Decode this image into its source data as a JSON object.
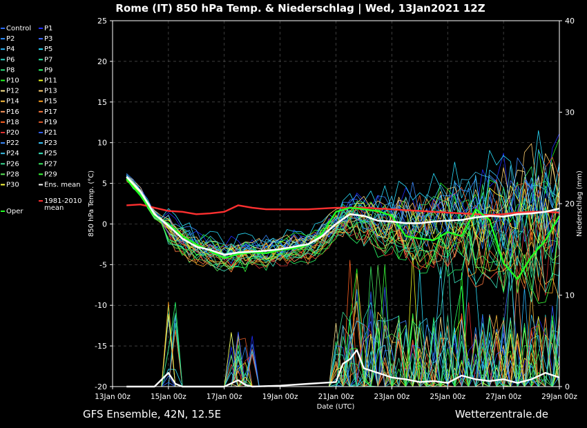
{
  "chart_data": {
    "type": "line",
    "title": "Rome  (IT)  850 hPa Temp. & Niederschlag | Wed, 13Jan2021 12Z",
    "xlabel": "Date (UTC)",
    "ylabel_left": "850 hPa Temp. (°C)",
    "ylabel_right": "Niederschlag (mm)",
    "ylim_left": [
      -20,
      25
    ],
    "ylim_right": [
      0,
      40
    ],
    "yticks_left": [
      "25",
      "20",
      "15",
      "10",
      "5",
      "0",
      "-5",
      "-10",
      "-15",
      "-20"
    ],
    "yticks_right": [
      "40",
      "30",
      "20",
      "10",
      "0"
    ],
    "x_range_days": [
      0,
      16
    ],
    "xticks": [
      "13Jan 00z",
      "15Jan 00z",
      "17Jan 00z",
      "19Jan 00z",
      "21Jan 00z",
      "23Jan 00z",
      "25Jan 00z",
      "27Jan 00z",
      "29Jan 00z"
    ],
    "grid": true,
    "legend_placement": "left",
    "footer_left": "GFS Ensemble, 42N, 12.5E",
    "footer_right": "Wetterzentrale.de",
    "ens_mean_temp": [
      [
        0.5,
        5.8
      ],
      [
        1.0,
        4.0
      ],
      [
        1.5,
        1.2
      ],
      [
        2.0,
        -0.2
      ],
      [
        2.5,
        -1.8
      ],
      [
        3.0,
        -2.8
      ],
      [
        3.5,
        -3.2
      ],
      [
        4.0,
        -3.8
      ],
      [
        4.5,
        -3.5
      ],
      [
        5.0,
        -3.4
      ],
      [
        5.5,
        -3.3
      ],
      [
        6.0,
        -3.1
      ],
      [
        6.5,
        -2.8
      ],
      [
        7.0,
        -2.5
      ],
      [
        7.5,
        -1.5
      ],
      [
        8.0,
        0.0
      ],
      [
        8.5,
        1.2
      ],
      [
        9.0,
        1.0
      ],
      [
        9.5,
        0.4
      ],
      [
        10.0,
        0.3
      ],
      [
        10.5,
        0.1
      ],
      [
        11.0,
        0.1
      ],
      [
        11.5,
        0.3
      ],
      [
        12.0,
        0.4
      ],
      [
        12.5,
        0.5
      ],
      [
        13.0,
        0.8
      ],
      [
        13.5,
        1.0
      ],
      [
        14.0,
        0.9
      ],
      [
        14.5,
        1.2
      ],
      [
        15.0,
        1.3
      ],
      [
        15.5,
        1.5
      ],
      [
        16.0,
        1.9
      ]
    ],
    "climate_mean_temp": [
      [
        0.5,
        2.3
      ],
      [
        1.0,
        2.4
      ],
      [
        1.5,
        2.0
      ],
      [
        2.0,
        1.6
      ],
      [
        2.5,
        1.5
      ],
      [
        3.0,
        1.2
      ],
      [
        3.5,
        1.3
      ],
      [
        4.0,
        1.5
      ],
      [
        4.5,
        2.3
      ],
      [
        5.0,
        2.0
      ],
      [
        5.5,
        1.8
      ],
      [
        6.0,
        1.8
      ],
      [
        6.5,
        1.8
      ],
      [
        7.0,
        1.8
      ],
      [
        7.5,
        1.9
      ],
      [
        8.0,
        2.0
      ],
      [
        8.5,
        2.0
      ],
      [
        9.0,
        2.0
      ],
      [
        9.5,
        1.9
      ],
      [
        10.0,
        1.8
      ],
      [
        10.5,
        1.7
      ],
      [
        11.0,
        1.6
      ],
      [
        11.5,
        1.5
      ],
      [
        12.0,
        1.4
      ],
      [
        12.5,
        1.3
      ],
      [
        13.0,
        1.2
      ],
      [
        13.5,
        1.1
      ],
      [
        14.0,
        1.2
      ],
      [
        14.5,
        1.4
      ],
      [
        15.0,
        1.5
      ],
      [
        15.5,
        1.5
      ],
      [
        16.0,
        1.4
      ]
    ],
    "oper_temp": [
      [
        0.5,
        5.5
      ],
      [
        1.0,
        3.5
      ],
      [
        1.5,
        1.0
      ],
      [
        2.0,
        0.0
      ],
      [
        2.5,
        -1.5
      ],
      [
        3.0,
        -2.5
      ],
      [
        3.5,
        -3.3
      ],
      [
        4.0,
        -4.2
      ],
      [
        4.5,
        -3.7
      ],
      [
        5.0,
        -3.5
      ],
      [
        5.5,
        -3.6
      ],
      [
        6.0,
        -3.2
      ],
      [
        6.5,
        -3.0
      ],
      [
        7.0,
        -2.6
      ],
      [
        7.5,
        -1.2
      ],
      [
        8.0,
        1.5
      ],
      [
        8.5,
        2.0
      ],
      [
        9.0,
        1.8
      ],
      [
        9.5,
        1.6
      ],
      [
        10.0,
        1.0
      ],
      [
        10.5,
        -1.5
      ],
      [
        11.0,
        -1.8
      ],
      [
        11.5,
        -2.0
      ],
      [
        12.0,
        -1.0
      ],
      [
        12.5,
        -1.5
      ],
      [
        13.0,
        1.8
      ],
      [
        13.5,
        0.5
      ],
      [
        14.0,
        -4.8
      ],
      [
        14.5,
        -6.8
      ],
      [
        15.0,
        -4.0
      ],
      [
        15.5,
        -2.0
      ],
      [
        16.0,
        1.0
      ]
    ],
    "ens_mean_precip": [
      [
        0.5,
        0
      ],
      [
        1.0,
        0
      ],
      [
        1.5,
        0
      ],
      [
        2.0,
        1.5
      ],
      [
        2.25,
        0.3
      ],
      [
        2.5,
        0
      ],
      [
        3.0,
        0
      ],
      [
        4.0,
        0
      ],
      [
        4.5,
        0.7
      ],
      [
        4.75,
        0.2
      ],
      [
        5.0,
        0
      ],
      [
        6.0,
        0.1
      ],
      [
        7.0,
        0.3
      ],
      [
        8.0,
        0.5
      ],
      [
        8.25,
        2.5
      ],
      [
        8.5,
        3.0
      ],
      [
        8.75,
        4.0
      ],
      [
        9.0,
        2.0
      ],
      [
        9.5,
        1.5
      ],
      [
        10.0,
        1.0
      ],
      [
        10.5,
        0.8
      ],
      [
        11.0,
        0.5
      ],
      [
        11.5,
        0.6
      ],
      [
        12.0,
        0.4
      ],
      [
        12.5,
        1.2
      ],
      [
        13.0,
        0.8
      ],
      [
        13.5,
        0.6
      ],
      [
        14.0,
        0.8
      ],
      [
        14.5,
        0.4
      ],
      [
        15.0,
        0.8
      ],
      [
        15.5,
        1.5
      ],
      [
        16.0,
        1.0
      ]
    ],
    "series": [
      {
        "name": "Control",
        "color": "#2a6cff"
      },
      {
        "name": "P1",
        "color": "#1f2cff"
      },
      {
        "name": "P2",
        "color": "#2a8cff"
      },
      {
        "name": "P3",
        "color": "#3f6bff"
      },
      {
        "name": "P4",
        "color": "#2ab8ff"
      },
      {
        "name": "P5",
        "color": "#2ae0ff"
      },
      {
        "name": "P6",
        "color": "#2ad8c8"
      },
      {
        "name": "P7",
        "color": "#2ae8a0"
      },
      {
        "name": "P8",
        "color": "#2ae07a"
      },
      {
        "name": "P9",
        "color": "#2aff6a"
      },
      {
        "name": "P10",
        "color": "#22ff22"
      },
      {
        "name": "P11",
        "color": "#f0ff22"
      },
      {
        "name": "P12",
        "color": "#ffe890"
      },
      {
        "name": "P13",
        "color": "#ffd070"
      },
      {
        "name": "P14",
        "color": "#ffc040"
      },
      {
        "name": "P15",
        "color": "#ffa020"
      },
      {
        "name": "P16",
        "color": "#ff9a60"
      },
      {
        "name": "P17",
        "color": "#ff7a40"
      },
      {
        "name": "P18",
        "color": "#ff6020"
      },
      {
        "name": "P19",
        "color": "#e05a2a"
      },
      {
        "name": "P20",
        "color": "#e03030"
      },
      {
        "name": "P21",
        "color": "#3060ff"
      },
      {
        "name": "P22",
        "color": "#3a8aff"
      },
      {
        "name": "P23",
        "color": "#3ac8ff"
      },
      {
        "name": "P24",
        "color": "#3ac0e8"
      },
      {
        "name": "P25",
        "color": "#3ae8c0"
      },
      {
        "name": "P26",
        "color": "#3ad890"
      },
      {
        "name": "P27",
        "color": "#3ae860"
      },
      {
        "name": "P28",
        "color": "#5ae85a"
      },
      {
        "name": "P29",
        "color": "#3aff3a"
      },
      {
        "name": "P30",
        "color": "#ffff40"
      },
      {
        "name": "Ens. mean",
        "color": "#ffffff"
      },
      {
        "name": "1981-2010 mean",
        "color": "#ff3030"
      },
      {
        "name": "Oper",
        "color": "#22ff22"
      }
    ]
  }
}
